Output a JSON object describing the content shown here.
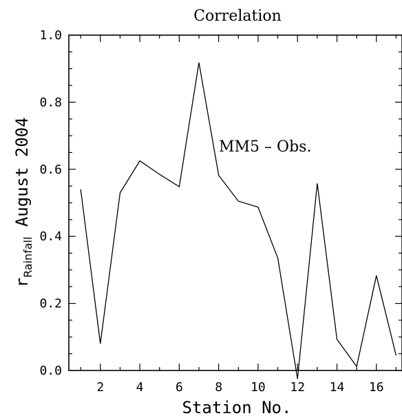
{
  "chart_data": {
    "type": "line",
    "title": "Correlation",
    "xlabel": "Station No.",
    "ylabel": {
      "main": "r",
      "subscript": "Rainfall",
      "suffix": " August 2004"
    },
    "annotation": "MM5 – Obs.",
    "xlim": [
      0.4,
      17.3
    ],
    "ylim": [
      0.0,
      1.0
    ],
    "x_ticks": [
      2,
      4,
      6,
      8,
      10,
      12,
      14,
      16
    ],
    "y_ticks": [
      "0.0",
      "0.2",
      "0.4",
      "0.6",
      "0.8",
      "1.0"
    ],
    "grid": false,
    "series": [
      {
        "x": [
          1,
          2,
          3,
          4,
          5,
          6,
          7,
          8,
          9,
          10,
          11,
          12,
          13,
          14,
          15,
          16,
          17
        ],
        "y": [
          0.54,
          0.08,
          0.53,
          0.625,
          0.585,
          0.548,
          0.918,
          0.582,
          0.505,
          0.487,
          0.335,
          -0.025,
          0.558,
          0.093,
          0.012,
          0.283,
          0.045
        ]
      }
    ]
  }
}
